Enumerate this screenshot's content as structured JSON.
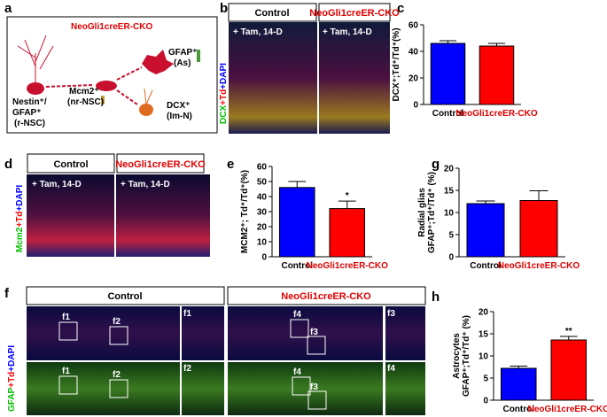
{
  "figure": {
    "panel_labels": [
      "a",
      "b",
      "c",
      "d",
      "e",
      "f",
      "g",
      "h"
    ],
    "a": {
      "title": "NeoGli1creER-CKO",
      "as": [
        "GFAP⁺",
        "(As)"
      ],
      "rnsc": [
        "Nestin⁺/",
        "GFAP⁺",
        "(r-NSC)"
      ],
      "nrnsc": [
        "Mcm2⁺",
        "(nr-NSC)"
      ],
      "imn": [
        "DCX⁺",
        "(Im-N)"
      ]
    },
    "b": {
      "headers": [
        "Control",
        "NeoGli1creER-CKO"
      ],
      "tags": [
        "+ Tam, 14-D",
        "+ Tam, 14-D"
      ],
      "stain": [
        "DCX",
        "+Td",
        "+DAPI"
      ]
    },
    "d": {
      "headers": [
        "Control",
        "NeoGli1creER-CKO"
      ],
      "tags": [
        "+ Tam, 14-D",
        "+ Tam, 14-D"
      ],
      "stain": [
        "Mcm2",
        "+Td",
        "+DAPI"
      ]
    },
    "f": {
      "headers": [
        "Control",
        "NeoGli1creER-CKO"
      ],
      "stain_top": [
        "GFAP",
        "+Td",
        "+DAPI"
      ],
      "boxes": [
        "f1",
        "f2",
        "f1",
        "f2",
        "f4",
        "f3",
        "f4",
        "f3"
      ],
      "insets": [
        "f1",
        "f2",
        "f3",
        "f4"
      ]
    }
  },
  "chart_data": [
    {
      "type": "bar",
      "y_label": [
        "DCX⁺;Td⁺/Td⁺(%)"
      ],
      "categories": [
        "Control",
        "NeoGli1creER-CKO"
      ],
      "values": [
        46,
        44
      ],
      "errors": [
        2,
        2
      ],
      "colors": [
        "#0000ff",
        "#ff0000"
      ],
      "ylim": [
        0,
        60
      ],
      "yticks": [
        0,
        20,
        40,
        60
      ]
    },
    {
      "type": "bar",
      "y_label": [
        "MCM2⁺; Td⁺/Td⁺(%)"
      ],
      "categories": [
        "Control",
        "NeoGli1creER-CKO"
      ],
      "values": [
        46,
        32
      ],
      "errors": [
        4,
        5
      ],
      "colors": [
        "#0000ff",
        "#ff0000"
      ],
      "significance": [
        null,
        "*"
      ],
      "ylim": [
        0,
        60
      ],
      "yticks": [
        0,
        10,
        20,
        30,
        40,
        50,
        60
      ]
    },
    {
      "type": "bar",
      "y_label": [
        "Radial glias",
        "GFAP⁺;Td⁺/Td⁺ (%)"
      ],
      "categories": [
        "Control",
        "NeoGli1creER-CKO"
      ],
      "values": [
        12,
        12.7
      ],
      "errors": [
        0.6,
        2.2
      ],
      "colors": [
        "#0000ff",
        "#ff0000"
      ],
      "ylim": [
        0,
        20
      ],
      "yticks": [
        0,
        5,
        10,
        15,
        20
      ]
    },
    {
      "type": "bar",
      "y_label": [
        "Astrocytes",
        "GFAP⁺;Td⁺/Td⁺ (%)"
      ],
      "categories": [
        "Control",
        "NeoGli1creER-CKO"
      ],
      "values": [
        7.2,
        13.6
      ],
      "errors": [
        0.5,
        0.8
      ],
      "colors": [
        "#0000ff",
        "#ff0000"
      ],
      "significance": [
        null,
        "**"
      ],
      "ylim": [
        0,
        20
      ],
      "yticks": [
        0,
        5,
        10,
        15,
        20
      ]
    }
  ]
}
